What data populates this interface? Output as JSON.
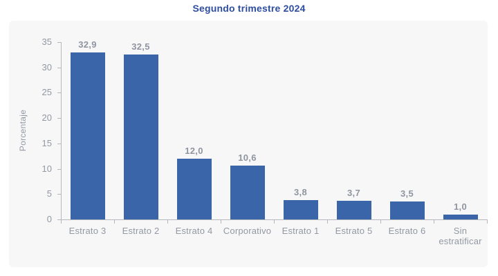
{
  "chart_data": {
    "type": "bar",
    "title": "Segundo trimestre 2024",
    "categories": [
      "Estrato 3",
      "Estrato 2",
      "Estrato 4",
      "Corporativo",
      "Estrato 1",
      "Estrato 5",
      "Estrato 6",
      "Sin estratificar"
    ],
    "values": [
      32.9,
      32.5,
      12.0,
      10.6,
      3.8,
      3.7,
      3.5,
      1.0
    ],
    "value_labels": [
      "32,9",
      "32,5",
      "12,0",
      "10,6",
      "3,8",
      "3,7",
      "3,5",
      "1,0"
    ],
    "xlabel": "",
    "ylabel": "Porcentaje",
    "ylim": [
      0,
      35
    ],
    "yticks": [
      0,
      5,
      10,
      15,
      20,
      25,
      30,
      35
    ],
    "grid": false,
    "legend": "none",
    "colors": {
      "bar": "#3a65a8",
      "title": "#2d4da0",
      "tick_label": "#9298a2",
      "value_label": "#8f959f",
      "axis_line": "#b4b7bc",
      "panel_background": "#f7f7f8",
      "page_background": "#ffffff"
    }
  }
}
